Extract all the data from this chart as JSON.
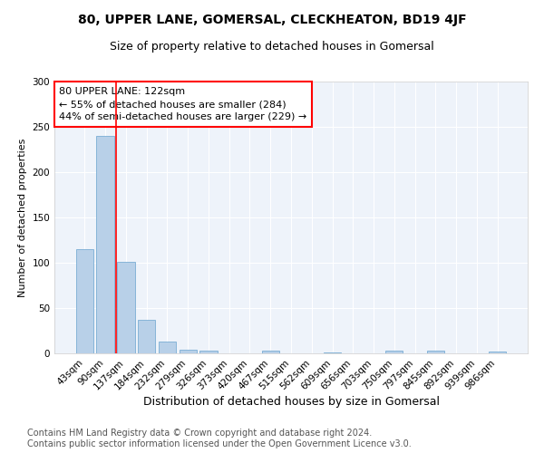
{
  "title": "80, UPPER LANE, GOMERSAL, CLECKHEATON, BD19 4JF",
  "subtitle": "Size of property relative to detached houses in Gomersal",
  "xlabel": "Distribution of detached houses by size in Gomersal",
  "ylabel": "Number of detached properties",
  "bar_color": "#b8d0e8",
  "bar_edge_color": "#7aadd4",
  "bg_color": "#eef3fa",
  "grid_color": "white",
  "categories": [
    "43sqm",
    "90sqm",
    "137sqm",
    "184sqm",
    "232sqm",
    "279sqm",
    "326sqm",
    "373sqm",
    "420sqm",
    "467sqm",
    "515sqm",
    "562sqm",
    "609sqm",
    "656sqm",
    "703sqm",
    "750sqm",
    "797sqm",
    "845sqm",
    "892sqm",
    "939sqm",
    "986sqm"
  ],
  "values": [
    115,
    240,
    101,
    37,
    13,
    4,
    3,
    0,
    0,
    3,
    0,
    0,
    1,
    0,
    0,
    3,
    0,
    3,
    0,
    0,
    2
  ],
  "vline_x": 1.5,
  "vline_color": "red",
  "annotation_text": "80 UPPER LANE: 122sqm\n← 55% of detached houses are smaller (284)\n44% of semi-detached houses are larger (229) →",
  "annotation_box_color": "white",
  "annotation_box_edge": "red",
  "ylim": [
    0,
    300
  ],
  "yticks": [
    0,
    50,
    100,
    150,
    200,
    250,
    300
  ],
  "footnote": "Contains HM Land Registry data © Crown copyright and database right 2024.\nContains public sector information licensed under the Open Government Licence v3.0.",
  "title_fontsize": 10,
  "subtitle_fontsize": 9,
  "xlabel_fontsize": 9,
  "ylabel_fontsize": 8,
  "tick_fontsize": 7.5,
  "annotation_fontsize": 8,
  "footnote_fontsize": 7
}
